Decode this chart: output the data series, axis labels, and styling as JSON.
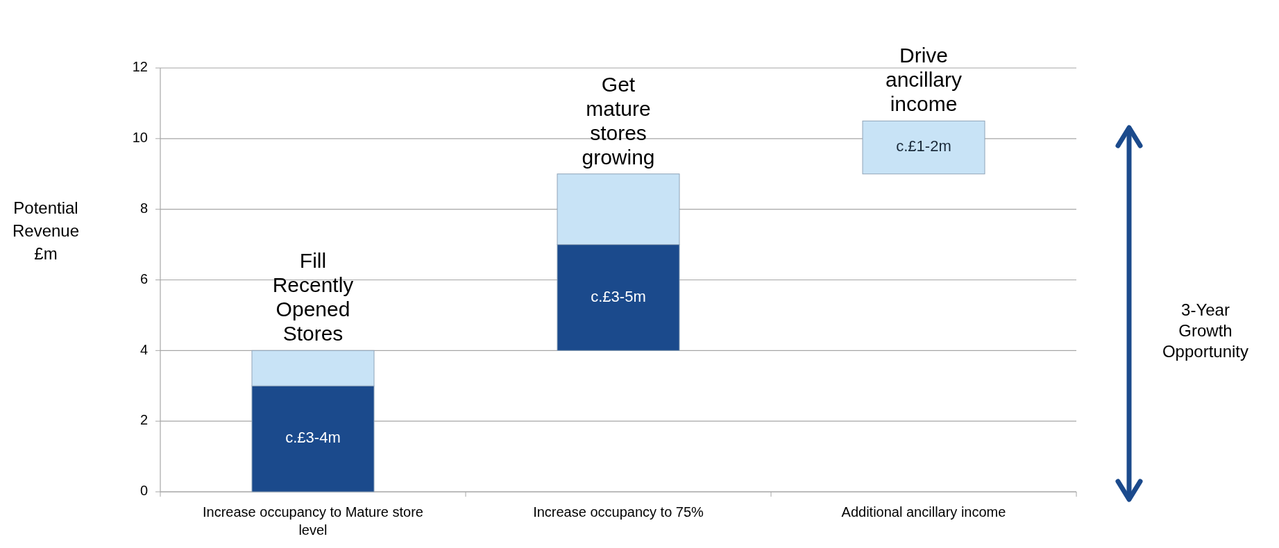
{
  "chart_data": {
    "type": "bar",
    "ylabel": "Potential Revenue £m",
    "categories": [
      "Increase occupancy to Mature store level",
      "Increase occupancy to 75%",
      "Additional ancillary income"
    ],
    "series": [
      {
        "color": "#1b4a8c",
        "base": [
          0,
          4,
          null
        ],
        "values": [
          3,
          3,
          null
        ],
        "value_labels": [
          "c.£3-4m",
          "c.£3-5m",
          null
        ]
      },
      {
        "color": "#c8e3f6",
        "base": [
          3,
          7,
          9
        ],
        "values": [
          1,
          2,
          1.5
        ],
        "value_labels": [
          null,
          null,
          "c.£1-2m"
        ]
      }
    ],
    "ylim": [
      0,
      12
    ],
    "yticks": [
      0,
      2,
      4,
      6,
      8,
      10,
      12
    ],
    "grid": "y",
    "annotations": [
      "Fill Recently Opened Stores",
      "Get mature stores growing",
      "Drive ancillary income",
      "3-Year Growth Opportunity"
    ]
  }
}
